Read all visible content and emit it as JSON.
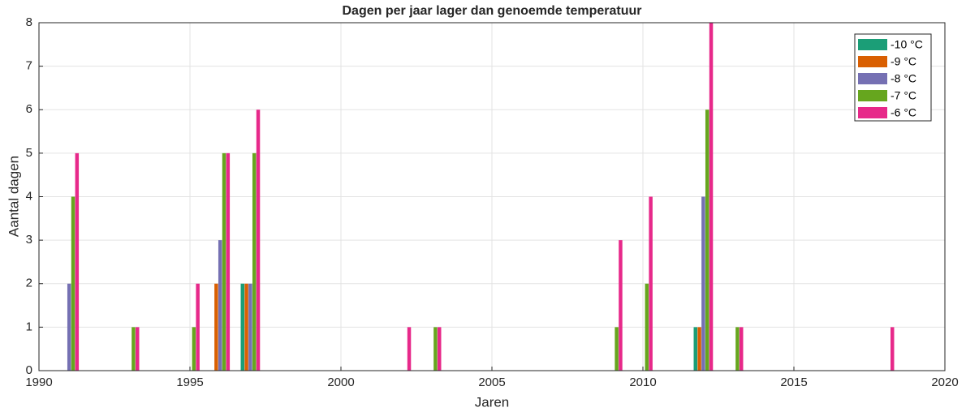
{
  "chart_data": {
    "type": "bar",
    "title": "Dagen per jaar lager dan genoemde temperatuur",
    "xlabel": "Jaren",
    "ylabel": "Aantal dagen",
    "x": [
      1991,
      1993,
      1995,
      1996,
      1997,
      2002,
      2003,
      2009,
      2010,
      2012,
      2013,
      2018
    ],
    "series": [
      {
        "name": "-10 °C",
        "color": "#1b9e77",
        "values": [
          0,
          0,
          0,
          0,
          2,
          0,
          0,
          0,
          0,
          1,
          0,
          0
        ]
      },
      {
        "name": "-9 °C",
        "color": "#d95f02",
        "values": [
          0,
          0,
          0,
          2,
          2,
          0,
          0,
          0,
          0,
          1,
          0,
          0
        ]
      },
      {
        "name": "-8 °C",
        "color": "#7570b3",
        "values": [
          2,
          0,
          0,
          3,
          2,
          0,
          0,
          0,
          0,
          4,
          0,
          0
        ]
      },
      {
        "name": "-7 °C",
        "color": "#66a61e",
        "values": [
          4,
          1,
          1,
          5,
          5,
          0,
          1,
          1,
          2,
          6,
          1,
          0
        ]
      },
      {
        "name": "-6 °C",
        "color": "#e7298a",
        "values": [
          5,
          1,
          2,
          5,
          6,
          1,
          1,
          3,
          4,
          8,
          1,
          1
        ]
      }
    ],
    "xlim": [
      1990,
      2020
    ],
    "xticks": [
      1990,
      1995,
      2000,
      2005,
      2010,
      2015,
      2020
    ],
    "ylim": [
      0,
      8
    ],
    "yticks": [
      0,
      1,
      2,
      3,
      4,
      5,
      6,
      7,
      8
    ],
    "grid": true,
    "legend": "northeast"
  }
}
